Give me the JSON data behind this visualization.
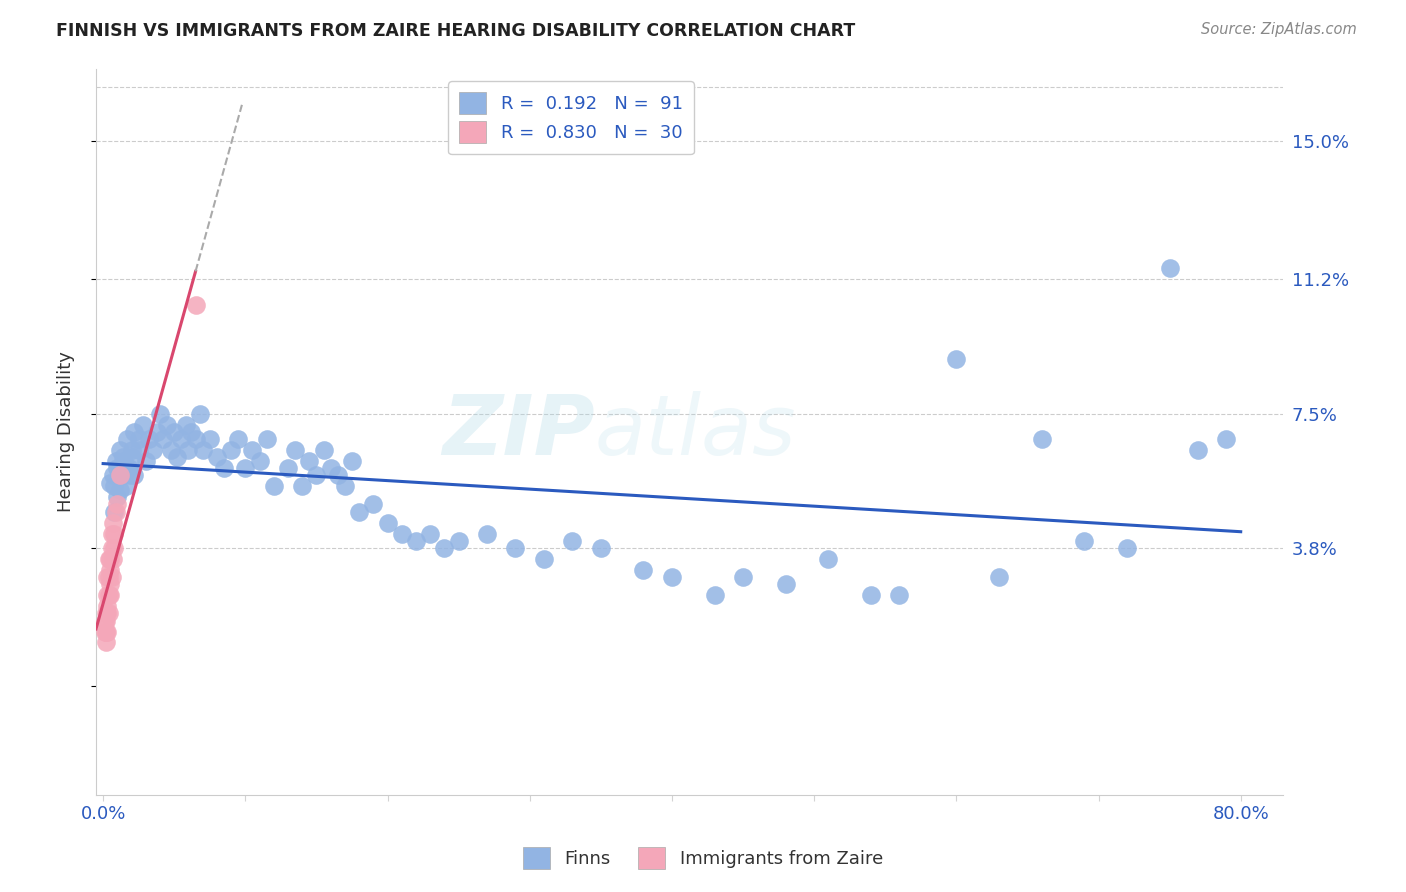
{
  "title": "FINNISH VS IMMIGRANTS FROM ZAIRE HEARING DISABILITY CORRELATION CHART",
  "source": "Source: ZipAtlas.com",
  "ylabel": "Hearing Disability",
  "blue_color": "#92b4e3",
  "pink_color": "#f4a7b9",
  "blue_line_color": "#2b5abf",
  "pink_line_color": "#d9476e",
  "R_blue": 0.192,
  "N_blue": 91,
  "R_pink": 0.83,
  "N_pink": 30,
  "watermark_left": "ZIP",
  "watermark_right": "atlas",
  "finns_x": [
    0.005,
    0.007,
    0.008,
    0.008,
    0.009,
    0.01,
    0.01,
    0.011,
    0.012,
    0.012,
    0.013,
    0.014,
    0.015,
    0.015,
    0.016,
    0.017,
    0.018,
    0.019,
    0.02,
    0.02,
    0.022,
    0.022,
    0.025,
    0.025,
    0.028,
    0.03,
    0.032,
    0.035,
    0.038,
    0.04,
    0.042,
    0.045,
    0.048,
    0.05,
    0.052,
    0.055,
    0.058,
    0.06,
    0.062,
    0.065,
    0.068,
    0.07,
    0.075,
    0.08,
    0.085,
    0.09,
    0.095,
    0.1,
    0.105,
    0.11,
    0.115,
    0.12,
    0.13,
    0.135,
    0.14,
    0.145,
    0.15,
    0.155,
    0.16,
    0.165,
    0.17,
    0.175,
    0.18,
    0.19,
    0.2,
    0.21,
    0.22,
    0.23,
    0.24,
    0.25,
    0.27,
    0.29,
    0.31,
    0.33,
    0.35,
    0.38,
    0.4,
    0.43,
    0.45,
    0.48,
    0.51,
    0.54,
    0.56,
    0.6,
    0.63,
    0.66,
    0.69,
    0.72,
    0.75,
    0.77,
    0.79
  ],
  "finns_y": [
    0.056,
    0.058,
    0.055,
    0.048,
    0.062,
    0.06,
    0.052,
    0.058,
    0.065,
    0.054,
    0.06,
    0.063,
    0.058,
    0.062,
    0.055,
    0.068,
    0.06,
    0.058,
    0.065,
    0.063,
    0.058,
    0.07,
    0.065,
    0.068,
    0.072,
    0.062,
    0.068,
    0.065,
    0.07,
    0.075,
    0.068,
    0.072,
    0.065,
    0.07,
    0.063,
    0.068,
    0.072,
    0.065,
    0.07,
    0.068,
    0.075,
    0.065,
    0.068,
    0.063,
    0.06,
    0.065,
    0.068,
    0.06,
    0.065,
    0.062,
    0.068,
    0.055,
    0.06,
    0.065,
    0.055,
    0.062,
    0.058,
    0.065,
    0.06,
    0.058,
    0.055,
    0.062,
    0.048,
    0.05,
    0.045,
    0.042,
    0.04,
    0.042,
    0.038,
    0.04,
    0.042,
    0.038,
    0.035,
    0.04,
    0.038,
    0.032,
    0.03,
    0.025,
    0.03,
    0.028,
    0.035,
    0.025,
    0.025,
    0.09,
    0.03,
    0.068,
    0.04,
    0.038,
    0.115,
    0.065,
    0.068
  ],
  "zaire_x": [
    0.001,
    0.001,
    0.002,
    0.002,
    0.002,
    0.002,
    0.003,
    0.003,
    0.003,
    0.003,
    0.003,
    0.004,
    0.004,
    0.004,
    0.004,
    0.005,
    0.005,
    0.005,
    0.005,
    0.006,
    0.006,
    0.006,
    0.007,
    0.007,
    0.008,
    0.008,
    0.009,
    0.01,
    0.012,
    0.065
  ],
  "zaire_y": [
    0.015,
    0.018,
    0.012,
    0.015,
    0.018,
    0.02,
    0.015,
    0.02,
    0.022,
    0.025,
    0.03,
    0.02,
    0.025,
    0.03,
    0.035,
    0.025,
    0.028,
    0.032,
    0.035,
    0.03,
    0.038,
    0.042,
    0.035,
    0.045,
    0.038,
    0.042,
    0.048,
    0.05,
    0.058,
    0.105
  ],
  "xlim_min": -0.005,
  "xlim_max": 0.83,
  "ylim_min": -0.03,
  "ylim_max": 0.17,
  "ytick_vals": [
    0.0,
    0.038,
    0.075,
    0.112,
    0.15
  ],
  "ytick_labels": [
    "",
    "3.8%",
    "7.5%",
    "11.2%",
    "15.0%"
  ],
  "xtick_vals": [
    0.0,
    0.1,
    0.2,
    0.3,
    0.4,
    0.5,
    0.6,
    0.7,
    0.8
  ],
  "xtick_labels": [
    "0.0%",
    "",
    "",
    "",
    "",
    "",
    "",
    "",
    "80.0%"
  ]
}
